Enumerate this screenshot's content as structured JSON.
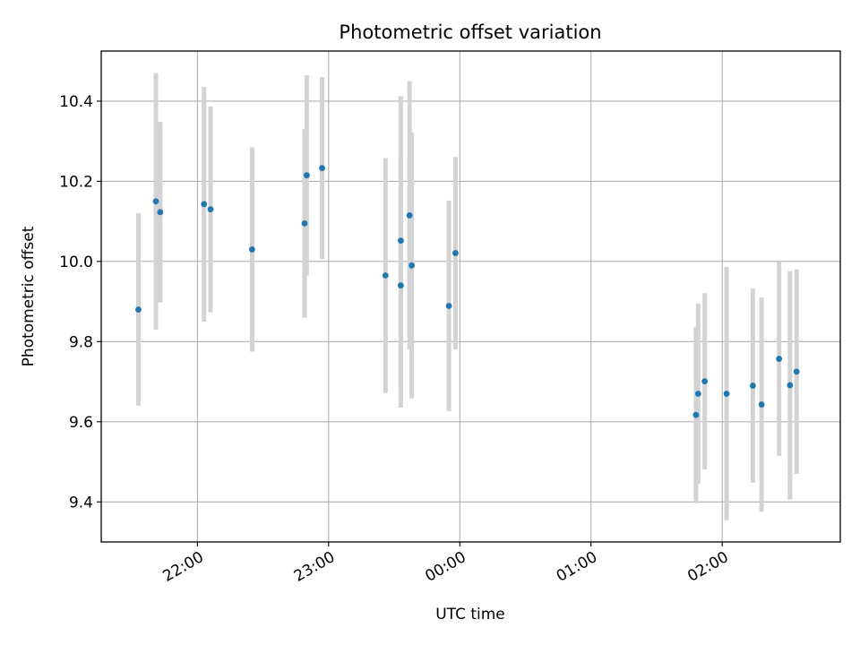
{
  "chart_data": {
    "type": "scatter",
    "title": "Photometric offset variation",
    "xlabel": "UTC time",
    "ylabel": "Photometric offset",
    "grid": true,
    "xlim": [
      "21:16",
      "02:54"
    ],
    "ylim": [
      9.3,
      10.525
    ],
    "x_ticks": [
      "22:00",
      "23:00",
      "00:00",
      "01:00",
      "02:00"
    ],
    "y_ticks": [
      "9.4",
      "9.6",
      "9.8",
      "10.0",
      "10.2",
      "10.4"
    ],
    "colors": {
      "point": "#1f77b4",
      "errorbar": "#d3d3d3",
      "grid": "#b0b0b0"
    },
    "series": [
      {
        "points": [
          {
            "x": "21:33",
            "y": 9.88,
            "err": 0.24
          },
          {
            "x": "21:41",
            "y": 10.15,
            "err": 0.32
          },
          {
            "x": "21:43",
            "y": 10.123,
            "err": 0.225
          },
          {
            "x": "22:03",
            "y": 10.143,
            "err": 0.293
          },
          {
            "x": "22:06",
            "y": 10.13,
            "err": 0.257
          },
          {
            "x": "22:25",
            "y": 10.03,
            "err": 0.255
          },
          {
            "x": "22:49",
            "y": 10.095,
            "err": 0.235
          },
          {
            "x": "22:50",
            "y": 10.215,
            "err": 0.25
          },
          {
            "x": "22:57",
            "y": 10.233,
            "err": 0.227
          },
          {
            "x": "23:26",
            "y": 9.965,
            "err": 0.293
          },
          {
            "x": "23:33",
            "y": 9.94,
            "err": 0.305
          },
          {
            "x": "23:33",
            "y": 10.052,
            "err": 0.36
          },
          {
            "x": "23:37",
            "y": 10.115,
            "err": 0.335
          },
          {
            "x": "23:38",
            "y": 9.99,
            "err": 0.332
          },
          {
            "x": "23:55",
            "y": 9.889,
            "err": 0.263
          },
          {
            "x": "23:58",
            "y": 10.021,
            "err": 0.24
          },
          {
            "x": "01:48",
            "y": 9.617,
            "err": 0.22
          },
          {
            "x": "01:49",
            "y": 9.67,
            "err": 0.225
          },
          {
            "x": "01:52",
            "y": 9.701,
            "err": 0.22
          },
          {
            "x": "02:02",
            "y": 9.67,
            "err": 0.316
          },
          {
            "x": "02:14",
            "y": 9.69,
            "err": 0.242
          },
          {
            "x": "02:18",
            "y": 9.643,
            "err": 0.267
          },
          {
            "x": "02:26",
            "y": 9.757,
            "err": 0.242
          },
          {
            "x": "02:31",
            "y": 9.691,
            "err": 0.285
          },
          {
            "x": "02:34",
            "y": 9.725,
            "err": 0.255
          }
        ]
      }
    ]
  }
}
